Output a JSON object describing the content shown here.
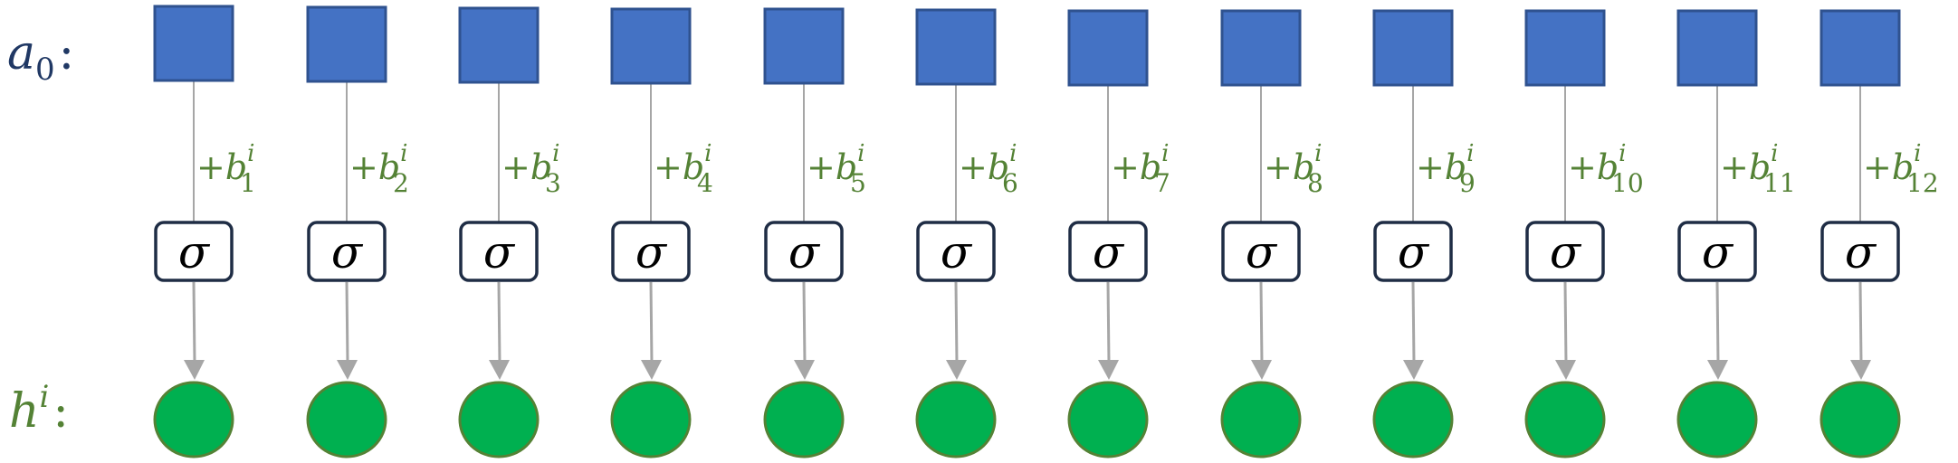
{
  "labels": {
    "top_row": {
      "symbol": "a",
      "subscript": "0",
      "suffix": ":"
    },
    "bottom_row": {
      "symbol": "h",
      "superscript": "i",
      "suffix": ":"
    }
  },
  "neurons": [
    {
      "bias": {
        "prefix": "+",
        "symbol": "b",
        "superscript": "i",
        "subscript": "1"
      },
      "activation": "σ"
    },
    {
      "bias": {
        "prefix": "+",
        "symbol": "b",
        "superscript": "i",
        "subscript": "2"
      },
      "activation": "σ"
    },
    {
      "bias": {
        "prefix": "+",
        "symbol": "b",
        "superscript": "i",
        "subscript": "3"
      },
      "activation": "σ"
    },
    {
      "bias": {
        "prefix": "+",
        "symbol": "b",
        "superscript": "i",
        "subscript": "4"
      },
      "activation": "σ"
    },
    {
      "bias": {
        "prefix": "+",
        "symbol": "b",
        "superscript": "i",
        "subscript": "5"
      },
      "activation": "σ"
    },
    {
      "bias": {
        "prefix": "+",
        "symbol": "b",
        "superscript": "i",
        "subscript": "6"
      },
      "activation": "σ"
    },
    {
      "bias": {
        "prefix": "+",
        "symbol": "b",
        "superscript": "i",
        "subscript": "7"
      },
      "activation": "σ"
    },
    {
      "bias": {
        "prefix": "+",
        "symbol": "b",
        "superscript": "i",
        "subscript": "8"
      },
      "activation": "σ"
    },
    {
      "bias": {
        "prefix": "+",
        "symbol": "b",
        "superscript": "i",
        "subscript": "9"
      },
      "activation": "σ"
    },
    {
      "bias": {
        "prefix": "+",
        "symbol": "b",
        "superscript": "i",
        "subscript": "10"
      },
      "activation": "σ"
    },
    {
      "bias": {
        "prefix": "+",
        "symbol": "b",
        "superscript": "i",
        "subscript": "11"
      },
      "activation": "σ"
    },
    {
      "bias": {
        "prefix": "+",
        "symbol": "b",
        "superscript": "i",
        "subscript": "12"
      },
      "activation": "σ"
    }
  ],
  "colors": {
    "square_fill": "#4472c4",
    "square_stroke": "#2f528f",
    "circle_fill": "#00b050",
    "circle_stroke": "#548235",
    "sigma_box_stroke": "#1f2d45",
    "bias_text": "#548235",
    "top_label": "#203864",
    "bottom_label": "#548235",
    "line": "#a6a6a6"
  }
}
